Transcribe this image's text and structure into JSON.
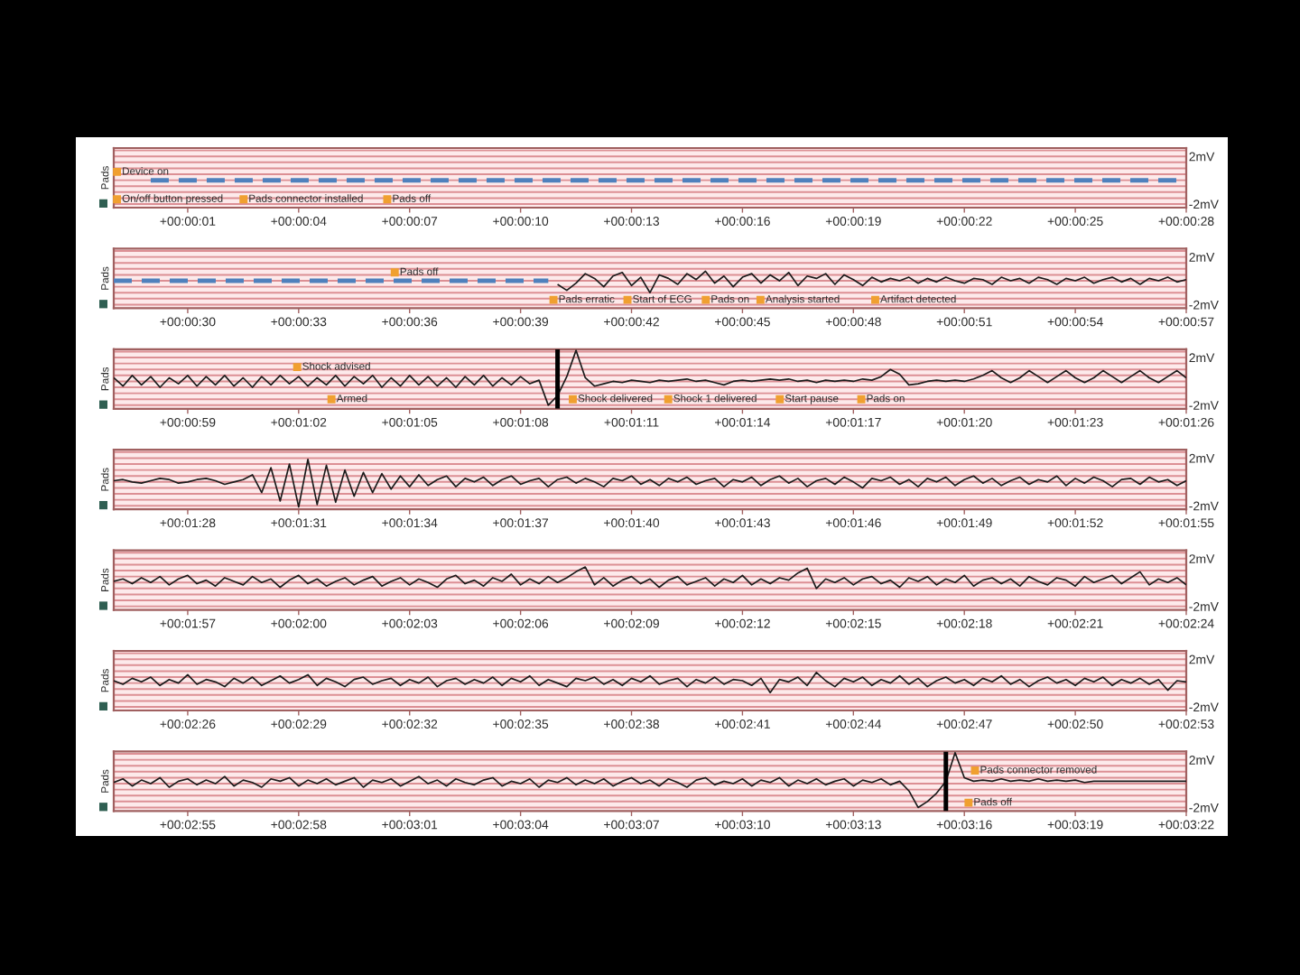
{
  "chart_data": [
    {
      "type": "line",
      "ylabel": "Pads",
      "categories": [
        null,
        null,
        null,
        null,
        null,
        null,
        null,
        null,
        "+00:00:01",
        null,
        null,
        null,
        null,
        null,
        null,
        null,
        null,
        null,
        null,
        null,
        "+00:00:04",
        null,
        null,
        null,
        null,
        null,
        null,
        null,
        null,
        null,
        null,
        null,
        "+00:00:07",
        null,
        null,
        null,
        null,
        null,
        null,
        null,
        null,
        null,
        null,
        null,
        "+00:00:10",
        null,
        null,
        null,
        null,
        null,
        null,
        null,
        null,
        null,
        null,
        null,
        "+00:00:13",
        null,
        null,
        null,
        null,
        null,
        null,
        null,
        null,
        null,
        null,
        null,
        "+00:00:16",
        null,
        null,
        null,
        null,
        null,
        null,
        null,
        null,
        null,
        null,
        null,
        "+00:00:19",
        null,
        null,
        null,
        null,
        null,
        null,
        null,
        null,
        null,
        null,
        null,
        "+00:00:22",
        null,
        null,
        null,
        null,
        null,
        null,
        null,
        null,
        null,
        null,
        null,
        "+00:00:25",
        null,
        null,
        null,
        null,
        null,
        null,
        null,
        null,
        null,
        null,
        null,
        "+00:00:28"
      ],
      "ylim": [
        -2.3,
        2.7
      ],
      "yticks": [
        {
          "value": -2,
          "label": "-2mV"
        },
        {
          "value": -1.5,
          "label": null
        },
        {
          "value": -1,
          "label": null
        },
        {
          "value": -0.5,
          "label": null
        },
        {
          "value": 0,
          "label": null
        },
        {
          "value": 0.5,
          "label": null
        },
        {
          "value": 1,
          "label": null
        },
        {
          "value": 1.5,
          "label": null
        },
        {
          "value": 2,
          "label": "2mV"
        },
        {
          "value": 2.5,
          "label": null
        }
      ],
      "grid": "y",
      "series": [
        {
          "color": "#4f81bd",
          "line_style": "dashed",
          "values": [
            null,
            null,
            null,
            null,
            0,
            0,
            0,
            0,
            0,
            0,
            0,
            0,
            0,
            0,
            0,
            0,
            0,
            0,
            0,
            0,
            0,
            0,
            0,
            0,
            0,
            0,
            0,
            0,
            0,
            0,
            0,
            0,
            0,
            0,
            0,
            0,
            0,
            0,
            0,
            0,
            0,
            0,
            0,
            0,
            0,
            0,
            0,
            0,
            0,
            0,
            0,
            0,
            0,
            0,
            0,
            0,
            0,
            0,
            0,
            0,
            0,
            0,
            0,
            0,
            0,
            0,
            0,
            0,
            0,
            0,
            0,
            0,
            0,
            0,
            0,
            0,
            0,
            0,
            0,
            0,
            0,
            0,
            0,
            0,
            0,
            0,
            0,
            0,
            0,
            0,
            0,
            0,
            0,
            0,
            0,
            0,
            0,
            0,
            0,
            0,
            0,
            0,
            0,
            0,
            0,
            0,
            0,
            0,
            0,
            0,
            0,
            0,
            0,
            0,
            0,
            0,
            0
          ]
        }
      ],
      "annotations": [
        "Device on",
        "On/off button pressed",
        "Pads connector installed",
        "Pads off"
      ]
    },
    {
      "type": "line",
      "ylabel": "Pads",
      "categories": [
        null,
        null,
        null,
        null,
        null,
        null,
        null,
        null,
        "+00:00:30",
        null,
        null,
        null,
        null,
        null,
        null,
        null,
        null,
        null,
        null,
        null,
        "+00:00:33",
        null,
        null,
        null,
        null,
        null,
        null,
        null,
        null,
        null,
        null,
        null,
        "+00:00:36",
        null,
        null,
        null,
        null,
        null,
        null,
        null,
        null,
        null,
        null,
        null,
        "+00:00:39",
        null,
        null,
        null,
        null,
        null,
        null,
        null,
        null,
        null,
        null,
        null,
        "+00:00:42",
        null,
        null,
        null,
        null,
        null,
        null,
        null,
        null,
        null,
        null,
        null,
        "+00:00:45",
        null,
        null,
        null,
        null,
        null,
        null,
        null,
        null,
        null,
        null,
        null,
        "+00:00:48",
        null,
        null,
        null,
        null,
        null,
        null,
        null,
        null,
        null,
        null,
        null,
        "+00:00:51",
        null,
        null,
        null,
        null,
        null,
        null,
        null,
        null,
        null,
        null,
        null,
        "+00:00:54",
        null,
        null,
        null,
        null,
        null,
        null,
        null,
        null,
        null,
        null,
        null,
        "+00:00:57"
      ],
      "ylim": [
        -2.3,
        2.7
      ],
      "yticks": [
        {
          "value": -2,
          "label": "-2mV"
        },
        {
          "value": -1.5,
          "label": null
        },
        {
          "value": -1,
          "label": null
        },
        {
          "value": -0.5,
          "label": null
        },
        {
          "value": 0,
          "label": null
        },
        {
          "value": 0.5,
          "label": null
        },
        {
          "value": 1,
          "label": null
        },
        {
          "value": 1.5,
          "label": null
        },
        {
          "value": 2,
          "label": "2mV"
        },
        {
          "value": 2.5,
          "label": null
        }
      ],
      "grid": "y",
      "series": [
        {
          "color": "#4f81bd",
          "line_style": "dashed",
          "values": [
            0,
            0,
            0,
            0,
            0,
            0,
            0,
            0,
            0,
            0,
            0,
            0,
            0,
            0,
            0,
            0,
            0,
            0,
            0,
            0,
            0,
            0,
            0,
            0,
            0,
            0,
            0,
            0,
            0,
            0,
            0,
            0,
            0,
            0,
            0,
            0,
            0,
            0,
            0,
            0,
            0,
            0,
            0,
            0,
            0,
            0,
            0,
            0,
            null,
            null,
            null,
            null,
            null,
            null,
            null,
            null,
            null,
            null,
            null,
            null,
            null,
            null,
            null,
            null,
            null,
            null,
            null,
            null,
            null,
            null,
            null,
            null,
            null,
            null,
            null,
            null,
            null,
            null,
            null,
            null,
            null,
            null,
            null,
            null,
            null,
            null,
            null,
            null,
            null,
            null,
            null,
            null,
            null,
            null,
            null,
            null,
            null,
            null,
            null,
            null,
            null,
            null,
            null,
            null,
            null,
            null,
            null,
            null,
            null,
            null,
            null,
            null,
            null,
            null,
            null,
            null,
            null
          ]
        },
        {
          "color": "#1a1a1a",
          "line_style": "solid",
          "values": [
            null,
            null,
            null,
            null,
            null,
            null,
            null,
            null,
            null,
            null,
            null,
            null,
            null,
            null,
            null,
            null,
            null,
            null,
            null,
            null,
            null,
            null,
            null,
            null,
            null,
            null,
            null,
            null,
            null,
            null,
            null,
            null,
            null,
            null,
            null,
            null,
            null,
            null,
            null,
            null,
            null,
            null,
            null,
            null,
            null,
            null,
            null,
            null,
            -0.3,
            -0.8,
            -0.2,
            0.6,
            0.2,
            -0.5,
            0.4,
            0.7,
            -0.4,
            0.3,
            -1.0,
            0.5,
            0.2,
            -0.3,
            0.6,
            0.1,
            0.8,
            -0.2,
            0.4,
            -0.5,
            0.3,
            0.6,
            -0.2,
            0.5,
            0.0,
            0.7,
            -0.4,
            0.4,
            0.2,
            0.6,
            -0.3,
            0.5,
            0.1,
            -0.4,
            0.3,
            -0.1,
            0.2,
            0.0,
            0.3,
            -0.2,
            0.2,
            -0.1,
            0.3,
            0.0,
            -0.2,
            0.2,
            0.1,
            -0.3,
            0.3,
            0.0,
            0.2,
            -0.2,
            0.3,
            0.1,
            -0.3,
            0.2,
            0.0,
            0.3,
            -0.2,
            0.1,
            0.3,
            -0.1,
            0.2,
            -0.3,
            0.2,
            0.0,
            0.3,
            -0.1,
            0.1
          ]
        }
      ],
      "annotations": [
        "Pads off",
        "Pads erratic",
        "Start of ECG",
        "Pads on",
        "Analysis started",
        "Artifact detected"
      ]
    },
    {
      "type": "line",
      "ylabel": "Pads",
      "categories": [
        null,
        null,
        null,
        null,
        null,
        null,
        null,
        null,
        "+00:00:59",
        null,
        null,
        null,
        null,
        null,
        null,
        null,
        null,
        null,
        null,
        null,
        "+00:01:02",
        null,
        null,
        null,
        null,
        null,
        null,
        null,
        null,
        null,
        null,
        null,
        "+00:01:05",
        null,
        null,
        null,
        null,
        null,
        null,
        null,
        null,
        null,
        null,
        null,
        "+00:01:08",
        null,
        null,
        null,
        null,
        null,
        null,
        null,
        null,
        null,
        null,
        null,
        "+00:01:11",
        null,
        null,
        null,
        null,
        null,
        null,
        null,
        null,
        null,
        null,
        null,
        "+00:01:14",
        null,
        null,
        null,
        null,
        null,
        null,
        null,
        null,
        null,
        null,
        null,
        "+00:01:17",
        null,
        null,
        null,
        null,
        null,
        null,
        null,
        null,
        null,
        null,
        null,
        "+00:01:20",
        null,
        null,
        null,
        null,
        null,
        null,
        null,
        null,
        null,
        null,
        null,
        "+00:01:23",
        null,
        null,
        null,
        null,
        null,
        null,
        null,
        null,
        null,
        null,
        null,
        "+00:01:26"
      ],
      "ylim": [
        -2.3,
        2.7
      ],
      "yticks": [
        {
          "value": -2,
          "label": "-2mV"
        },
        {
          "value": -1.5,
          "label": null
        },
        {
          "value": -1,
          "label": null
        },
        {
          "value": -0.5,
          "label": null
        },
        {
          "value": 0,
          "label": null
        },
        {
          "value": 0.5,
          "label": null
        },
        {
          "value": 1,
          "label": null
        },
        {
          "value": 1.5,
          "label": null
        },
        {
          "value": 2,
          "label": "2mV"
        },
        {
          "value": 2.5,
          "label": null
        }
      ],
      "grid": "y",
      "series": [
        {
          "color": "#1a1a1a",
          "line_style": "solid",
          "values": [
            0.3,
            -0.4,
            0.5,
            -0.3,
            0.4,
            -0.5,
            0.3,
            -0.2,
            0.5,
            -0.4,
            0.4,
            -0.3,
            0.5,
            -0.4,
            0.3,
            -0.5,
            0.4,
            -0.3,
            0.5,
            -0.2,
            0.4,
            -0.4,
            0.3,
            -0.3,
            0.5,
            -0.4,
            0.4,
            -0.2,
            0.5,
            -0.5,
            0.3,
            -0.4,
            0.5,
            -0.3,
            0.4,
            -0.4,
            0.3,
            -0.5,
            0.4,
            -0.3,
            0.5,
            -0.4,
            0.3,
            -0.3,
            0.4,
            -0.2,
            0.1,
            -2.0,
            -1.2,
            0.4,
            2.6,
            0.3,
            -0.4,
            -0.2,
            0.0,
            -0.1,
            0.1,
            0.0,
            -0.1,
            0.1,
            0.0,
            0.1,
            0.2,
            0.0,
            0.1,
            -0.1,
            -0.3,
            0.0,
            0.1,
            0.0,
            0.1,
            0.2,
            0.1,
            0.2,
            0.0,
            0.1,
            -0.1,
            0.1,
            0.0,
            0.1,
            0.0,
            0.2,
            0.1,
            0.4,
            1.0,
            0.6,
            -0.3,
            -0.2,
            0.0,
            0.1,
            0.0,
            0.1,
            0.0,
            0.2,
            0.5,
            0.9,
            0.3,
            -0.1,
            0.3,
            0.9,
            0.4,
            -0.1,
            0.4,
            0.9,
            0.3,
            -0.1,
            0.3,
            0.9,
            0.4,
            -0.1,
            0.4,
            0.9,
            0.3,
            -0.1,
            0.4,
            0.9,
            0.3
          ]
        }
      ],
      "annotations": [
        "Shock advised",
        "Armed",
        "Shock delivered",
        "Shock 1 delivered",
        "Start pause",
        "Pads on"
      ]
    },
    {
      "type": "line",
      "ylabel": "Pads",
      "categories": [
        null,
        null,
        null,
        null,
        null,
        null,
        null,
        null,
        "+00:01:28",
        null,
        null,
        null,
        null,
        null,
        null,
        null,
        null,
        null,
        null,
        null,
        "+00:01:31",
        null,
        null,
        null,
        null,
        null,
        null,
        null,
        null,
        null,
        null,
        null,
        "+00:01:34",
        null,
        null,
        null,
        null,
        null,
        null,
        null,
        null,
        null,
        null,
        null,
        "+00:01:37",
        null,
        null,
        null,
        null,
        null,
        null,
        null,
        null,
        null,
        null,
        null,
        "+00:01:40",
        null,
        null,
        null,
        null,
        null,
        null,
        null,
        null,
        null,
        null,
        null,
        "+00:01:43",
        null,
        null,
        null,
        null,
        null,
        null,
        null,
        null,
        null,
        null,
        null,
        "+00:01:46",
        null,
        null,
        null,
        null,
        null,
        null,
        null,
        null,
        null,
        null,
        null,
        "+00:01:49",
        null,
        null,
        null,
        null,
        null,
        null,
        null,
        null,
        null,
        null,
        null,
        "+00:01:52",
        null,
        null,
        null,
        null,
        null,
        null,
        null,
        null,
        null,
        null,
        null,
        "+00:01:55"
      ],
      "ylim": [
        -2.3,
        2.7
      ],
      "yticks": [
        {
          "value": -2,
          "label": "-2mV"
        },
        {
          "value": -1.5,
          "label": null
        },
        {
          "value": -1,
          "label": null
        },
        {
          "value": -0.5,
          "label": null
        },
        {
          "value": 0,
          "label": null
        },
        {
          "value": 0.5,
          "label": null
        },
        {
          "value": 1,
          "label": null
        },
        {
          "value": 1.5,
          "label": null
        },
        {
          "value": 2,
          "label": "2mV"
        },
        {
          "value": 2.5,
          "label": null
        }
      ],
      "grid": "y",
      "series": [
        {
          "color": "#1a1a1a",
          "line_style": "solid",
          "values": [
            0.1,
            0.2,
            0.0,
            -0.1,
            0.1,
            0.3,
            0.2,
            -0.1,
            0.0,
            0.2,
            0.3,
            0.1,
            -0.2,
            0.0,
            0.2,
            0.6,
            -0.9,
            1.2,
            -1.6,
            1.5,
            -2.1,
            1.9,
            -1.9,
            1.4,
            -1.7,
            1.0,
            -1.2,
            0.8,
            -0.9,
            0.7,
            -0.6,
            0.5,
            -0.4,
            0.6,
            -0.3,
            0.2,
            0.5,
            -0.4,
            0.3,
            0.0,
            0.4,
            -0.3,
            0.2,
            0.5,
            -0.2,
            0.1,
            0.3,
            -0.4,
            0.2,
            0.4,
            -0.1,
            0.3,
            0.0,
            -0.4,
            0.3,
            0.1,
            0.5,
            -0.2,
            0.2,
            -0.3,
            0.3,
            0.0,
            0.4,
            -0.2,
            0.1,
            0.3,
            -0.4,
            0.2,
            0.0,
            0.4,
            -0.3,
            0.2,
            0.5,
            -0.1,
            0.3,
            -0.4,
            0.1,
            0.3,
            -0.2,
            0.4,
            0.0,
            -0.5,
            0.3,
            0.1,
            0.4,
            -0.2,
            0.2,
            -0.4,
            0.3,
            0.0,
            0.4,
            -0.3,
            0.2,
            0.5,
            -0.1,
            0.3,
            -0.3,
            0.1,
            0.4,
            -0.2,
            0.2,
            0.0,
            0.5,
            -0.3,
            0.3,
            -0.1,
            0.4,
            0.1,
            -0.4,
            0.2,
            0.3,
            -0.2,
            0.4,
            0.0,
            0.2,
            -0.3,
            0.1
          ]
        }
      ]
    },
    {
      "type": "line",
      "ylabel": "Pads",
      "categories": [
        null,
        null,
        null,
        null,
        null,
        null,
        null,
        null,
        "+00:01:57",
        null,
        null,
        null,
        null,
        null,
        null,
        null,
        null,
        null,
        null,
        null,
        "+00:02:00",
        null,
        null,
        null,
        null,
        null,
        null,
        null,
        null,
        null,
        null,
        null,
        "+00:02:03",
        null,
        null,
        null,
        null,
        null,
        null,
        null,
        null,
        null,
        null,
        null,
        "+00:02:06",
        null,
        null,
        null,
        null,
        null,
        null,
        null,
        null,
        null,
        null,
        null,
        "+00:02:09",
        null,
        null,
        null,
        null,
        null,
        null,
        null,
        null,
        null,
        null,
        null,
        "+00:02:12",
        null,
        null,
        null,
        null,
        null,
        null,
        null,
        null,
        null,
        null,
        null,
        "+00:02:15",
        null,
        null,
        null,
        null,
        null,
        null,
        null,
        null,
        null,
        null,
        null,
        "+00:02:18",
        null,
        null,
        null,
        null,
        null,
        null,
        null,
        null,
        null,
        null,
        null,
        "+00:02:21",
        null,
        null,
        null,
        null,
        null,
        null,
        null,
        null,
        null,
        null,
        null,
        "+00:02:24"
      ],
      "ylim": [
        -2.3,
        2.7
      ],
      "yticks": [
        {
          "value": -2,
          "label": "-2mV"
        },
        {
          "value": -1.5,
          "label": null
        },
        {
          "value": -1,
          "label": null
        },
        {
          "value": -0.5,
          "label": null
        },
        {
          "value": 0,
          "label": null
        },
        {
          "value": 0.5,
          "label": null
        },
        {
          "value": 1,
          "label": null
        },
        {
          "value": 1.5,
          "label": null
        },
        {
          "value": 2,
          "label": "2mV"
        },
        {
          "value": 2.5,
          "label": null
        }
      ],
      "grid": "y",
      "series": [
        {
          "color": "#1a1a1a",
          "line_style": "solid",
          "values": [
            0.1,
            0.3,
            -0.1,
            0.4,
            0.0,
            0.5,
            -0.2,
            0.3,
            0.6,
            -0.1,
            0.2,
            -0.3,
            0.4,
            0.1,
            -0.2,
            0.5,
            0.0,
            0.3,
            -0.4,
            0.2,
            0.6,
            -0.1,
            0.3,
            -0.3,
            0.1,
            0.4,
            -0.2,
            0.2,
            0.5,
            -0.3,
            0.1,
            0.4,
            -0.2,
            0.3,
            0.0,
            -0.4,
            0.3,
            0.6,
            -0.1,
            0.2,
            -0.3,
            0.4,
            0.1,
            0.7,
            -0.2,
            0.3,
            -0.1,
            0.5,
            0.0,
            0.4,
            0.9,
            1.3,
            -0.2,
            0.4,
            -0.3,
            0.2,
            0.5,
            -0.1,
            0.3,
            -0.4,
            0.2,
            0.5,
            -0.2,
            0.1,
            0.4,
            -0.3,
            0.3,
            0.0,
            0.6,
            -0.2,
            0.3,
            -0.1,
            0.4,
            0.2,
            0.8,
            1.2,
            -0.5,
            0.3,
            0.0,
            0.4,
            -0.2,
            0.3,
            0.5,
            -0.1,
            0.2,
            -0.4,
            0.4,
            0.1,
            0.5,
            -0.2,
            0.3,
            0.0,
            0.6,
            -0.3,
            0.2,
            0.4,
            -0.1,
            0.3,
            -0.3,
            0.5,
            0.1,
            -0.2,
            0.4,
            0.2,
            -0.3,
            0.5,
            0.0,
            0.3,
            0.6,
            -0.1,
            0.4,
            0.9,
            -0.2,
            0.3,
            0.0,
            0.4,
            -0.2
          ]
        }
      ]
    },
    {
      "type": "line",
      "ylabel": "Pads",
      "categories": [
        null,
        null,
        null,
        null,
        null,
        null,
        null,
        null,
        "+00:02:26",
        null,
        null,
        null,
        null,
        null,
        null,
        null,
        null,
        null,
        null,
        null,
        "+00:02:29",
        null,
        null,
        null,
        null,
        null,
        null,
        null,
        null,
        null,
        null,
        null,
        "+00:02:32",
        null,
        null,
        null,
        null,
        null,
        null,
        null,
        null,
        null,
        null,
        null,
        "+00:02:35",
        null,
        null,
        null,
        null,
        null,
        null,
        null,
        null,
        null,
        null,
        null,
        "+00:02:38",
        null,
        null,
        null,
        null,
        null,
        null,
        null,
        null,
        null,
        null,
        null,
        "+00:02:41",
        null,
        null,
        null,
        null,
        null,
        null,
        null,
        null,
        null,
        null,
        null,
        "+00:02:44",
        null,
        null,
        null,
        null,
        null,
        null,
        null,
        null,
        null,
        null,
        null,
        "+00:02:47",
        null,
        null,
        null,
        null,
        null,
        null,
        null,
        null,
        null,
        null,
        null,
        "+00:02:50",
        null,
        null,
        null,
        null,
        null,
        null,
        null,
        null,
        null,
        null,
        null,
        "+00:02:53"
      ],
      "ylim": [
        -2.3,
        2.7
      ],
      "yticks": [
        {
          "value": -2,
          "label": "-2mV"
        },
        {
          "value": -1.5,
          "label": null
        },
        {
          "value": -1,
          "label": null
        },
        {
          "value": -0.5,
          "label": null
        },
        {
          "value": 0,
          "label": null
        },
        {
          "value": 0.5,
          "label": null
        },
        {
          "value": 1,
          "label": null
        },
        {
          "value": 1.5,
          "label": null
        },
        {
          "value": 2,
          "label": "2mV"
        },
        {
          "value": 2.5,
          "label": null
        }
      ],
      "grid": "y",
      "series": [
        {
          "color": "#1a1a1a",
          "line_style": "solid",
          "values": [
            0.2,
            -0.1,
            0.4,
            0.1,
            0.5,
            -0.2,
            0.3,
            0.0,
            0.7,
            -0.1,
            0.3,
            0.1,
            -0.3,
            0.4,
            0.0,
            0.5,
            -0.2,
            0.2,
            0.6,
            0.0,
            0.3,
            0.7,
            -0.2,
            0.4,
            0.1,
            -0.3,
            0.3,
            0.5,
            -0.1,
            0.2,
            0.4,
            -0.2,
            0.3,
            0.0,
            0.5,
            -0.3,
            0.2,
            0.4,
            -0.1,
            0.3,
            0.0,
            0.5,
            -0.2,
            0.4,
            0.1,
            0.6,
            -0.2,
            0.3,
            0.0,
            -0.3,
            0.4,
            0.2,
            0.5,
            -0.1,
            0.3,
            -0.2,
            0.4,
            0.1,
            0.6,
            -0.1,
            0.2,
            0.4,
            -0.3,
            0.3,
            0.0,
            0.5,
            -0.1,
            0.3,
            0.2,
            -0.2,
            0.4,
            -0.8,
            0.3,
            0.1,
            0.5,
            -0.2,
            0.9,
            0.2,
            -0.3,
            0.4,
            0.1,
            0.5,
            -0.2,
            0.3,
            0.0,
            0.6,
            -0.1,
            0.4,
            -0.3,
            0.2,
            0.5,
            0.0,
            0.3,
            -0.2,
            0.4,
            0.1,
            0.6,
            -0.1,
            0.3,
            -0.3,
            0.2,
            0.5,
            0.0,
            0.3,
            -0.2,
            0.4,
            0.1,
            0.5,
            -0.2,
            0.3,
            0.0,
            0.4,
            -0.1,
            0.3,
            -0.6,
            0.2,
            0.1
          ]
        }
      ]
    },
    {
      "type": "line",
      "ylabel": "Pads",
      "categories": [
        null,
        null,
        null,
        null,
        null,
        null,
        null,
        null,
        "+00:02:55",
        null,
        null,
        null,
        null,
        null,
        null,
        null,
        null,
        null,
        null,
        null,
        "+00:02:58",
        null,
        null,
        null,
        null,
        null,
        null,
        null,
        null,
        null,
        null,
        null,
        "+00:03:01",
        null,
        null,
        null,
        null,
        null,
        null,
        null,
        null,
        null,
        null,
        null,
        "+00:03:04",
        null,
        null,
        null,
        null,
        null,
        null,
        null,
        null,
        null,
        null,
        null,
        "+00:03:07",
        null,
        null,
        null,
        null,
        null,
        null,
        null,
        null,
        null,
        null,
        null,
        "+00:03:10",
        null,
        null,
        null,
        null,
        null,
        null,
        null,
        null,
        null,
        null,
        null,
        "+00:03:13",
        null,
        null,
        null,
        null,
        null,
        null,
        null,
        null,
        null,
        null,
        null,
        "+00:03:16",
        null,
        null,
        null,
        null,
        null,
        null,
        null,
        null,
        null,
        null,
        null,
        "+00:03:19",
        null,
        null,
        null,
        null,
        null,
        null,
        null,
        null,
        null,
        null,
        null,
        "+00:03:22"
      ],
      "ylim": [
        -2.3,
        2.7
      ],
      "yticks": [
        {
          "value": -2,
          "label": "-2mV"
        },
        {
          "value": -1.5,
          "label": null
        },
        {
          "value": -1,
          "label": null
        },
        {
          "value": -0.5,
          "label": null
        },
        {
          "value": 0,
          "label": null
        },
        {
          "value": 0.5,
          "label": null
        },
        {
          "value": 1,
          "label": null
        },
        {
          "value": 1.5,
          "label": null
        },
        {
          "value": 2,
          "label": "2mV"
        },
        {
          "value": 2.5,
          "label": null
        }
      ],
      "grid": "y",
      "series": [
        {
          "color": "#1a1a1a",
          "line_style": "solid",
          "values": [
            0.1,
            0.4,
            -0.2,
            0.3,
            0.0,
            0.5,
            -0.3,
            0.2,
            0.4,
            -0.1,
            0.3,
            0.0,
            0.6,
            -0.2,
            0.3,
            0.1,
            -0.3,
            0.4,
            0.2,
            0.5,
            -0.2,
            0.3,
            0.0,
            0.4,
            -0.1,
            0.2,
            0.5,
            -0.3,
            0.3,
            0.1,
            0.4,
            -0.2,
            0.2,
            0.6,
            0.0,
            0.3,
            -0.2,
            0.4,
            0.1,
            -0.1,
            0.3,
            0.5,
            -0.2,
            0.2,
            0.0,
            0.4,
            -0.3,
            0.3,
            0.1,
            0.5,
            -0.1,
            0.3,
            0.0,
            0.4,
            -0.2,
            0.2,
            0.5,
            0.0,
            0.3,
            -0.2,
            0.4,
            0.1,
            -0.3,
            0.3,
            0.5,
            -0.1,
            0.2,
            0.0,
            0.4,
            -0.2,
            0.3,
            0.1,
            0.5,
            -0.2,
            0.3,
            0.0,
            0.4,
            -0.1,
            0.2,
            0.4,
            -0.2,
            0.3,
            0.1,
            0.4,
            -0.1,
            0.2,
            -0.6,
            -2.0,
            -1.5,
            -0.8,
            0.2,
            2.6,
            0.5,
            0.2,
            0.3,
            0.2,
            0.4,
            0.2,
            0.3,
            0.2,
            0.4,
            0.2,
            0.3,
            0.2,
            0.3,
            0.1,
            0.2,
            0.2,
            0.2,
            0.2,
            0.2,
            0.2,
            0.2,
            0.2,
            0.2,
            0.2,
            0.2
          ]
        }
      ],
      "annotations": [
        "Pads connector removed",
        "Pads off"
      ]
    }
  ]
}
